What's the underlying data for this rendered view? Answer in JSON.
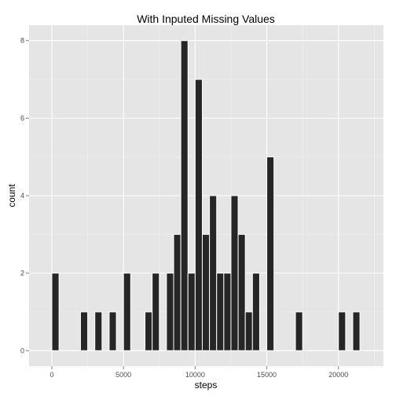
{
  "chart_data": {
    "type": "bar",
    "title": "With Inputed Missing Values",
    "xlabel": "steps",
    "ylabel": "count",
    "bin_width": 500,
    "xlim": [
      -1590,
      23140
    ],
    "ylim": [
      -0.4,
      8.4
    ],
    "x_ticks": [
      0,
      5000,
      10000,
      15000,
      20000
    ],
    "x_tick_labels": [
      "0",
      "5000",
      "10000",
      "15000",
      "20000"
    ],
    "y_ticks": [
      0,
      2,
      4,
      6,
      8
    ],
    "y_tick_labels": [
      "0",
      "2",
      "4",
      "6",
      "8"
    ],
    "bins": [
      {
        "x": 250,
        "count": 2
      },
      {
        "x": 2250,
        "count": 1
      },
      {
        "x": 3250,
        "count": 1
      },
      {
        "x": 4250,
        "count": 1
      },
      {
        "x": 5250,
        "count": 2
      },
      {
        "x": 6750,
        "count": 1
      },
      {
        "x": 7250,
        "count": 2
      },
      {
        "x": 8250,
        "count": 2
      },
      {
        "x": 8750,
        "count": 3
      },
      {
        "x": 9250,
        "count": 8
      },
      {
        "x": 9750,
        "count": 2
      },
      {
        "x": 10250,
        "count": 7
      },
      {
        "x": 10750,
        "count": 3
      },
      {
        "x": 11250,
        "count": 4
      },
      {
        "x": 11750,
        "count": 2
      },
      {
        "x": 12250,
        "count": 2
      },
      {
        "x": 12750,
        "count": 4
      },
      {
        "x": 13250,
        "count": 3
      },
      {
        "x": 13750,
        "count": 1
      },
      {
        "x": 14250,
        "count": 2
      },
      {
        "x": 15250,
        "count": 5
      },
      {
        "x": 17250,
        "count": 1
      },
      {
        "x": 20250,
        "count": 1
      },
      {
        "x": 21250,
        "count": 1
      }
    ],
    "colors": {
      "bar": "#262626",
      "panel": "#e5e5e5",
      "grid": "#ffffff"
    },
    "grid": true,
    "legend": "none"
  }
}
